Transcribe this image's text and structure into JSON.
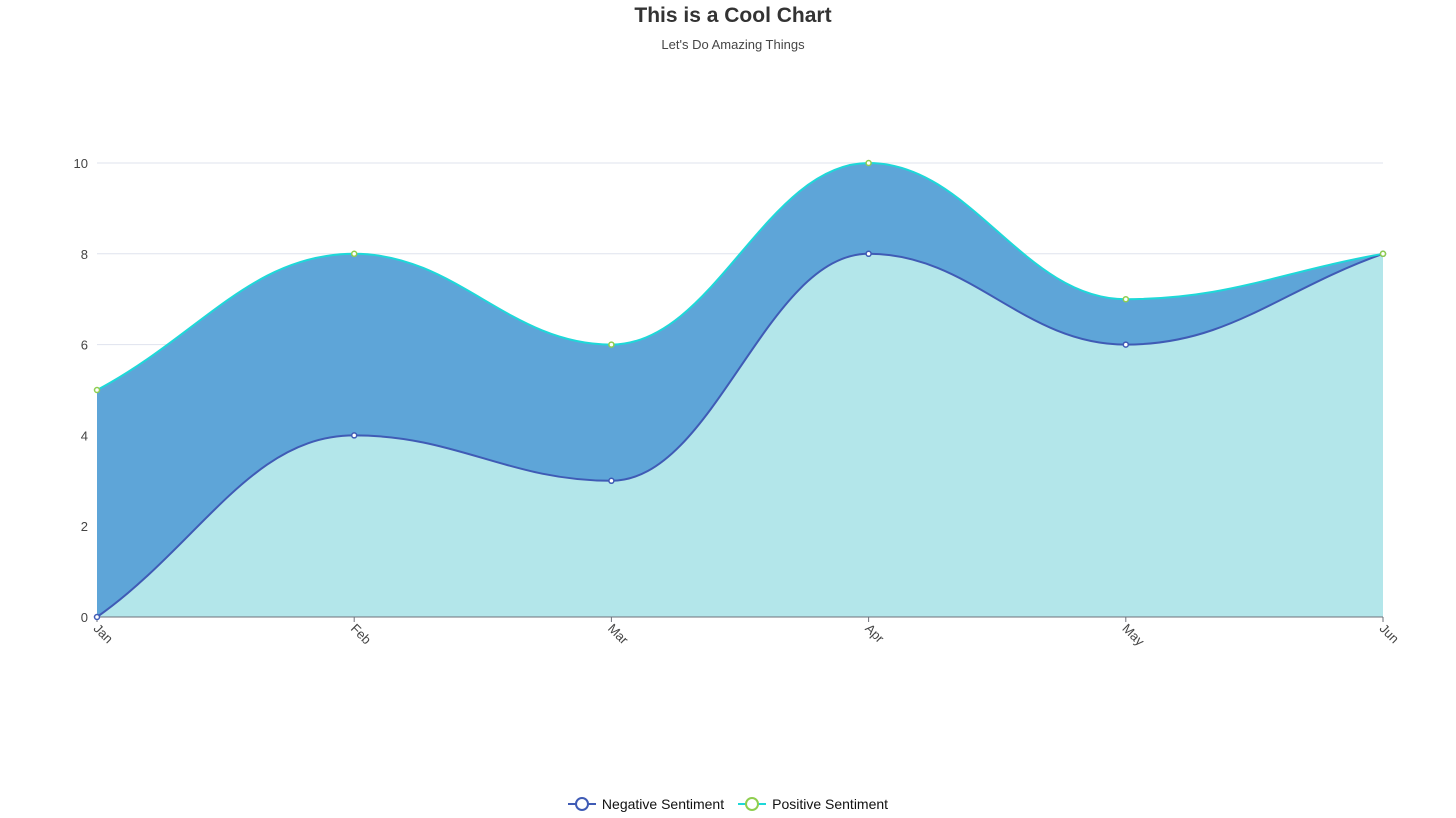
{
  "chart_data": {
    "type": "area",
    "title": "This is a Cool Chart",
    "subtitle": "Let's Do Amazing Things",
    "categories": [
      "Jan",
      "Feb",
      "Mar",
      "Apr",
      "May",
      "Jun"
    ],
    "ylim": [
      0,
      10
    ],
    "yticks": [
      0,
      2,
      4,
      6,
      8,
      10
    ],
    "grid": true,
    "smooth": true,
    "stacked": false,
    "legend_position": "bottom-center",
    "series": [
      {
        "name": "Negative Sentiment",
        "values": [
          0,
          4,
          3,
          8,
          6,
          8
        ],
        "line_color": "#3f5bb5",
        "fill_color": "#b3e6ea",
        "marker_color": "#3f5bb5"
      },
      {
        "name": "Positive Sentiment",
        "values": [
          5,
          8,
          6,
          10,
          7,
          8
        ],
        "line_color": "#1ed8d8",
        "fill_color": "#5ea5d8",
        "marker_color": "#8fce4f"
      }
    ]
  }
}
